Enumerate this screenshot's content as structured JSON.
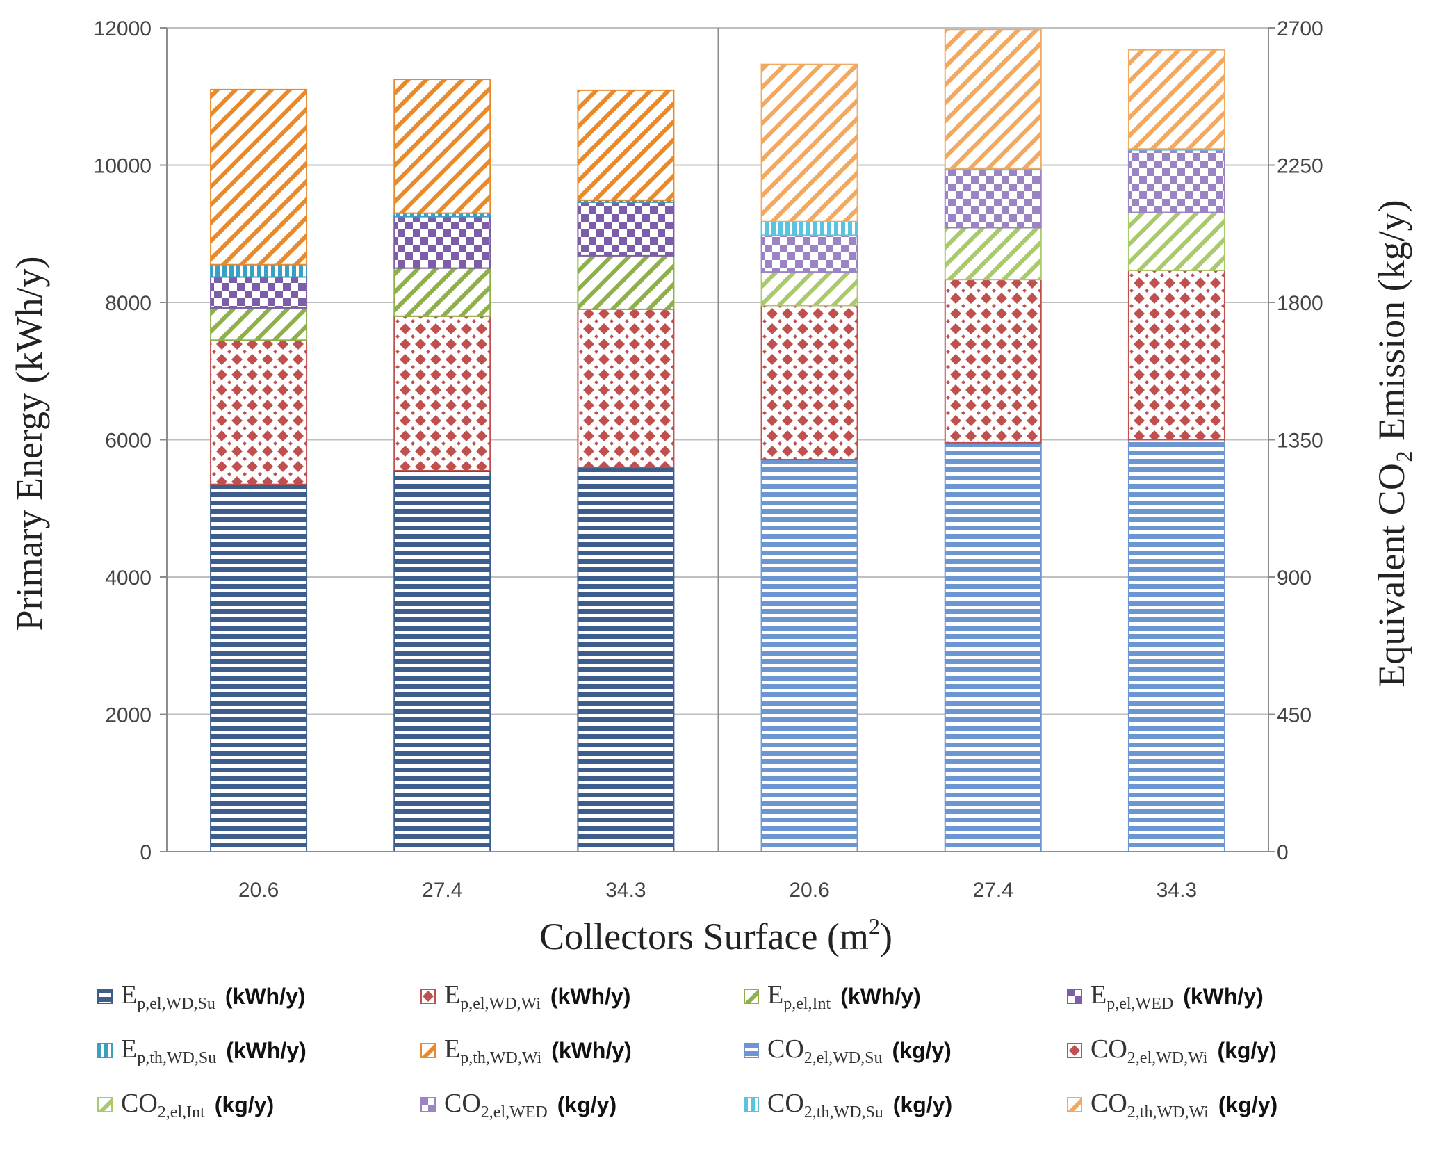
{
  "chart_data": {
    "type": "stacked-bar",
    "xlabel": "Collectors Surface (m²)",
    "xlabel_main": "Collectors Surface (m",
    "xlabel_sup": "2",
    "xlabel_end": ")",
    "ylabel": "Primary Energy (kWh/y)",
    "y2label": "Equivalent CO₂ Emission (kg/y)",
    "ylim": [
      0,
      12000
    ],
    "y2lim": [
      0,
      2700
    ],
    "yticks": [
      "0",
      "2000",
      "4000",
      "6000",
      "8000",
      "10000",
      "12000"
    ],
    "y2ticks": [
      "0",
      "450",
      "900",
      "1350",
      "1800",
      "2250",
      "2700"
    ],
    "grid": true,
    "groups": [
      {
        "name": "Primary Energy",
        "axis": "left",
        "categories": [
          "20.6",
          "27.4",
          "34.3"
        ],
        "series": [
          {
            "name": "Ep,el,WD,Su",
            "values": [
              5350,
              5550,
              5600
            ]
          },
          {
            "name": "Ep,el,WD,Wi",
            "values": [
              2100,
              2250,
              2300
            ]
          },
          {
            "name": "Ep,el,Int",
            "values": [
              470,
              700,
              780
            ]
          },
          {
            "name": "Ep,el,WED",
            "values": [
              450,
              750,
              780
            ]
          },
          {
            "name": "Ep,th,WD,Su",
            "values": [
              180,
              50,
              30
            ]
          },
          {
            "name": "Ep,th,WD,Wi",
            "values": [
              2550,
              1950,
              1600
            ]
          }
        ]
      },
      {
        "name": "CO2 Emission",
        "axis": "right",
        "categories": [
          "20.6",
          "27.4",
          "34.3"
        ],
        "series": [
          {
            "name": "CO2,el,WD,Su",
            "values": [
              1285,
              1340,
              1350
            ]
          },
          {
            "name": "CO2,el,WD,Wi",
            "values": [
              505,
              535,
              555
            ]
          },
          {
            "name": "CO2,el,Int",
            "values": [
              110,
              170,
              190
            ]
          },
          {
            "name": "CO2,el,WED",
            "values": [
              120,
              190,
              205
            ]
          },
          {
            "name": "CO2,th,WD,Su",
            "values": [
              45,
              5,
              3
            ]
          },
          {
            "name": "CO2,th,WD,Wi",
            "values": [
              515,
              455,
              325
            ]
          }
        ]
      }
    ],
    "legend": [
      {
        "key": "ep_su",
        "base": "E",
        "sub": "p,el,WD,Su",
        "unit": "(kWh/y)"
      },
      {
        "key": "ep_wi",
        "base": "E",
        "sub": "p,el,WD,Wi",
        "unit": "(kWh/y)"
      },
      {
        "key": "ep_int",
        "base": "E",
        "sub": "p,el,Int",
        "unit": "(kWh/y)"
      },
      {
        "key": "ep_wed",
        "base": "E",
        "sub": "p,el,WED",
        "unit": "(kWh/y)"
      },
      {
        "key": "ep_th_su",
        "base": "E",
        "sub": "p,th,WD,Su",
        "unit": "(kWh/y)"
      },
      {
        "key": "ep_th_wi",
        "base": "E",
        "sub": "p,th,WD,Wi",
        "unit": "(kWh/y)"
      },
      {
        "key": "co_su",
        "base": "CO",
        "sub": "2,el,WD,Su",
        "unit": "(kg/y)"
      },
      {
        "key": "co_wi",
        "base": "CO",
        "sub": "2,el,WD,Wi",
        "unit": "(kg/y)"
      },
      {
        "key": "co_int",
        "base": "CO",
        "sub": "2,el,Int",
        "unit": "(kg/y)"
      },
      {
        "key": "co_wed",
        "base": "CO",
        "sub": "2,el,WED",
        "unit": "(kg/y)"
      },
      {
        "key": "co_th_su",
        "base": "CO",
        "sub": "2,th,WD,Su",
        "unit": "(kg/y)"
      },
      {
        "key": "co_th_wi",
        "base": "CO",
        "sub": "2,th,WD,Wi",
        "unit": "(kg/y)"
      }
    ]
  },
  "colors": {
    "ep_su": "#3d5d8f",
    "ep_wi": "#c0504d",
    "ep_int": "#8db04a",
    "ep_wed": "#7c5ea8",
    "ep_th_su": "#3a9fc0",
    "ep_th_wi": "#e88a2c",
    "co_su": "#6b96d1",
    "co_wi": "#c0504d",
    "co_int": "#a9c96d",
    "co_wed": "#9b84c4",
    "co_th_su": "#5cc3df",
    "co_th_wi": "#f2a85e",
    "grid": "#bfbfbf",
    "axis": "#8c8c8c"
  }
}
